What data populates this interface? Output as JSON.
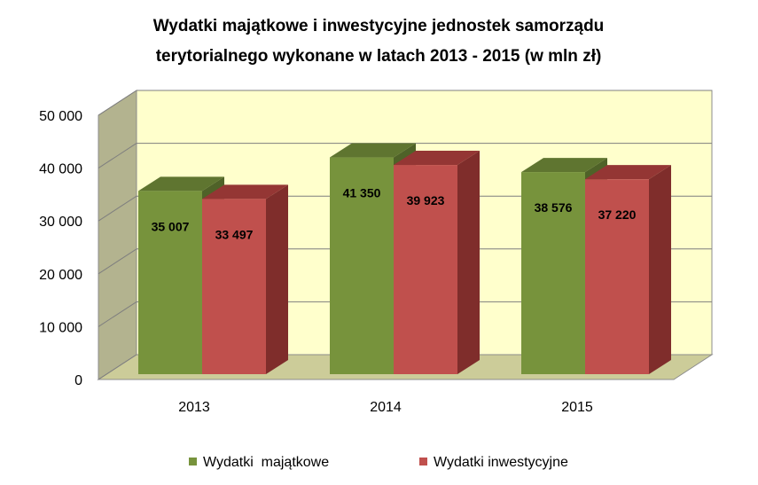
{
  "chart_data": {
    "type": "bar",
    "title_lines": [
      "Wydatki majątkowe i inwestycyjne jednostek samorządu",
      "terytorialnego wykonane  w latach 2013 - 2015 (w mln zł)"
    ],
    "categories": [
      "2013",
      "2014",
      "2015"
    ],
    "series": [
      {
        "name": "Wydatki  majątkowe",
        "values": [
          35007,
          41350,
          38576
        ],
        "value_labels": [
          "35 007",
          "41 350",
          "38 576"
        ],
        "color": "#77933c",
        "side_color": "#4f6228",
        "top_color": "#5f7530"
      },
      {
        "name": "Wydatki inwestycyjne",
        "values": [
          33497,
          39923,
          37220
        ],
        "value_labels": [
          "33 497",
          "39 923",
          "37 220"
        ],
        "color": "#c0504d",
        "side_color": "#7f2d2b",
        "top_color": "#943634"
      }
    ],
    "y_ticks": [
      "0",
      "10 000",
      "20 000",
      "30 000",
      "40 000",
      "50 000"
    ],
    "ylim": [
      0,
      50000
    ],
    "grid": true,
    "legend_position": "bottom",
    "wall_color": "#ffffcc",
    "side_wall_color": "#b3b38f",
    "floor_color": "#cccc99"
  }
}
